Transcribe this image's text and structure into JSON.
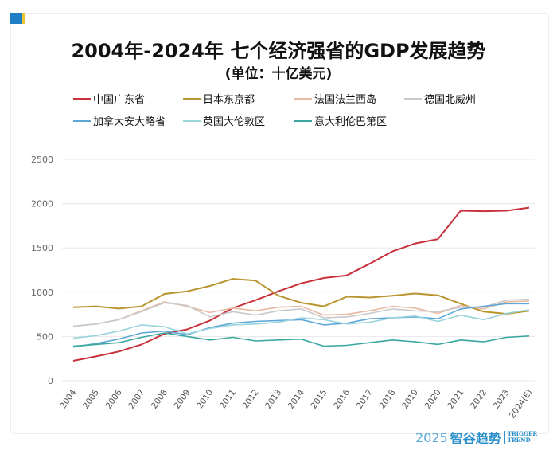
{
  "chart_data": {
    "type": "line",
    "title": "2004年-2024年 七个经济强省的GDP发展趋势",
    "subtitle": "(单位：十亿美元)",
    "xlabel": "",
    "ylabel": "",
    "ylim": [
      0,
      2500
    ],
    "yticks": [
      "0",
      "500",
      "1000",
      "1500",
      "2000",
      "2500"
    ],
    "categories": [
      "2004",
      "2005",
      "2006",
      "2007",
      "2008",
      "2009",
      "2010",
      "2011",
      "2012",
      "2013",
      "2014",
      "2015",
      "2016",
      "2017",
      "2018",
      "2019",
      "2020",
      "2021",
      "2022",
      "2023",
      "2024(E)"
    ],
    "grid": true,
    "legend_position": "top",
    "series": [
      {
        "name": "中国广东省",
        "color": "#c8323c",
        "values": [
          225,
          275,
          330,
          410,
          530,
          580,
          680,
          820,
          910,
          1010,
          1100,
          1160,
          1190,
          1320,
          1460,
          1550,
          1600,
          1920,
          1915,
          1920,
          1955
        ]
      },
      {
        "name": "日本东京都",
        "color": "#b8952e",
        "values": [
          830,
          840,
          815,
          840,
          980,
          1010,
          1070,
          1150,
          1130,
          960,
          880,
          840,
          950,
          940,
          960,
          985,
          965,
          870,
          780,
          755,
          790
        ]
      },
      {
        "name": "法国法兰西岛",
        "color": "#e9b9a2",
        "values": [
          615,
          640,
          690,
          790,
          890,
          840,
          770,
          820,
          790,
          830,
          840,
          740,
          750,
          790,
          840,
          820,
          760,
          850,
          810,
          890,
          900
        ]
      },
      {
        "name": "德国北威州",
        "color": "#c9c9c9",
        "values": [
          615,
          640,
          690,
          780,
          880,
          850,
          720,
          780,
          740,
          790,
          810,
          710,
          720,
          760,
          810,
          790,
          780,
          830,
          830,
          910,
          920
        ]
      },
      {
        "name": "加拿大安大略省",
        "color": "#5ea8d8",
        "values": [
          380,
          420,
          470,
          540,
          560,
          520,
          600,
          650,
          670,
          680,
          690,
          630,
          650,
          700,
          710,
          720,
          700,
          810,
          840,
          870,
          870
        ]
      },
      {
        "name": "英国大伦敦区",
        "color": "#9ad4dc",
        "values": [
          480,
          510,
          560,
          630,
          610,
          530,
          590,
          630,
          640,
          660,
          710,
          690,
          640,
          660,
          710,
          730,
          670,
          740,
          690,
          760,
          800
        ]
      },
      {
        "name": "意大利伦巴第区",
        "color": "#3aa8a0",
        "values": [
          390,
          410,
          430,
          490,
          540,
          500,
          460,
          490,
          450,
          460,
          470,
          390,
          400,
          430,
          460,
          440,
          410,
          460,
          440,
          490,
          505
        ]
      }
    ]
  },
  "brand": {
    "year": "2025",
    "name": "智谷趋势",
    "en1": "TRIGGER",
    "en2": "TREND"
  }
}
